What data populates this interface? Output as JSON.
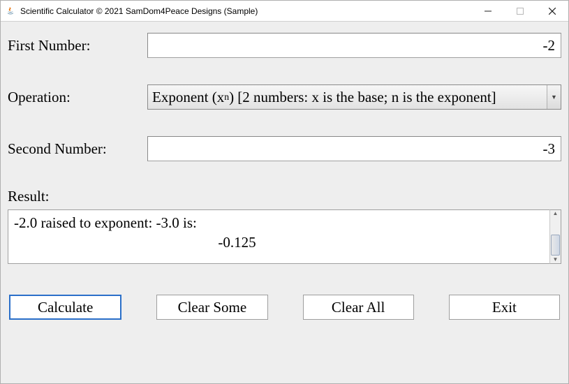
{
  "window": {
    "title": "Scientific Calculator © 2021 SamDom4Peace Designs (Sample)"
  },
  "labels": {
    "first_number": "First Number:",
    "operation": "Operation:",
    "second_number": "Second Number:",
    "result": "Result:"
  },
  "inputs": {
    "first_number_value": "-2",
    "second_number_value": "-3"
  },
  "operation": {
    "selected_html": "Exponent (x<sup>n</sup>) [2 numbers: x is the base; n is the exponent]"
  },
  "result": {
    "line1": "-2.0 raised to exponent: -3.0 is:",
    "line2": "-0.125"
  },
  "buttons": {
    "calculate": "Calculate",
    "clear_some": "Clear Some",
    "clear_all": "Clear All",
    "exit": "Exit"
  },
  "colors": {
    "client_bg": "#eeeeee",
    "input_bg": "#ffffff",
    "border": "#a0a0a0",
    "default_btn_border": "#2a6fc9"
  }
}
